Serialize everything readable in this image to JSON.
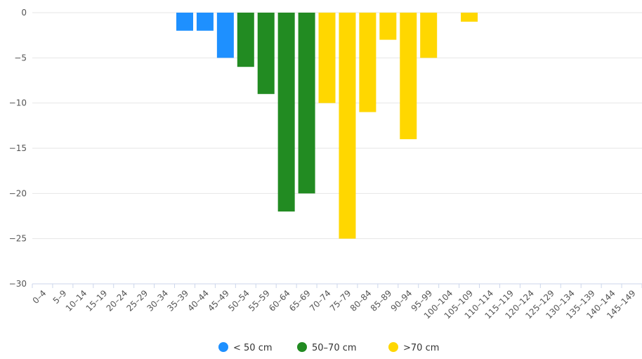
{
  "chart_data": {
    "type": "bar",
    "title": "",
    "xlabel": "",
    "ylabel": "",
    "ylim": [
      -30,
      0
    ],
    "yticks": [
      0,
      -5,
      -10,
      -15,
      -20,
      -25,
      -30
    ],
    "grid": true,
    "legend_position": "bottom-center",
    "categories": [
      "0-4",
      "5-9",
      "10-14",
      "15-19",
      "20-24",
      "25-29",
      "30-34",
      "35-39",
      "40-44",
      "45-49",
      "50-54",
      "55-59",
      "60-64",
      "65-69",
      "70-74",
      "75-79",
      "80-84",
      "85-89",
      "90-94",
      "95-99",
      "100-104",
      "105-109",
      "110-114",
      "115-119",
      "120-124",
      "125-129",
      "130-134",
      "135-139",
      "140-144",
      "145-149"
    ],
    "tick_labels": [
      "0–4",
      "5–9",
      "10–14",
      "15–19",
      "20–24",
      "25–29",
      "30–34",
      "35–39",
      "40–44",
      "45–49",
      "50–54",
      "55–59",
      "60–64",
      "65–69",
      "70–74",
      "75–79",
      "80–84",
      "85–89",
      "90–94",
      "95–99",
      "100–104",
      "105–109",
      "110–114",
      "115–119",
      "120–124",
      "125–129",
      "130–134",
      "135–139",
      "140–144",
      "145–149"
    ],
    "series": [
      {
        "name": "< 50 cm",
        "color": "#1e90ff",
        "values": [
          0,
          0,
          0,
          0,
          0,
          0,
          0,
          -2,
          -2,
          -5,
          0,
          0,
          0,
          0,
          0,
          0,
          0,
          0,
          0,
          0,
          0,
          0,
          0,
          0,
          0,
          0,
          0,
          0,
          0,
          0
        ]
      },
      {
        "name": "50–70 cm",
        "color": "#228b22",
        "values": [
          0,
          0,
          0,
          0,
          0,
          0,
          0,
          0,
          0,
          0,
          -6,
          -9,
          -22,
          -20,
          0,
          0,
          0,
          0,
          0,
          0,
          0,
          0,
          0,
          0,
          0,
          0,
          0,
          0,
          0,
          0
        ]
      },
      {
        "name": ">70 cm",
        "color": "#ffd700",
        "values": [
          0,
          0,
          0,
          0,
          0,
          0,
          0,
          0,
          0,
          0,
          0,
          0,
          0,
          0,
          -10,
          -25,
          -11,
          -3,
          -14,
          -5,
          0,
          -1,
          0,
          0,
          0,
          0,
          0,
          0,
          0,
          0
        ]
      }
    ]
  }
}
